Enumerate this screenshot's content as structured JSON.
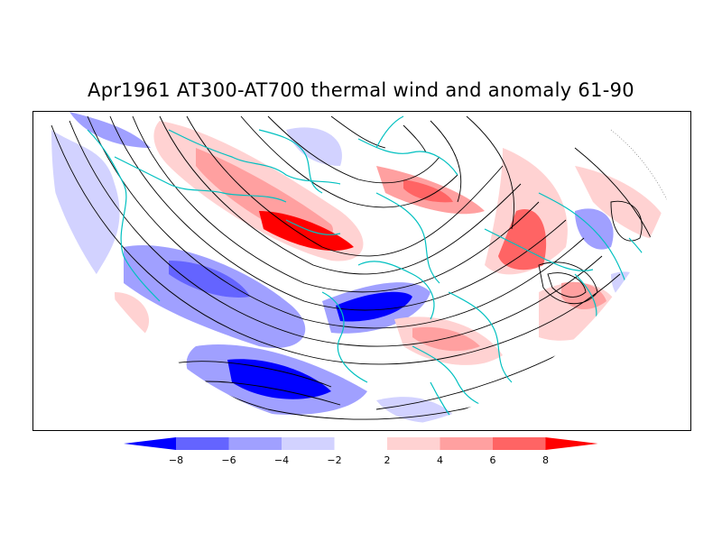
{
  "title": "Apr1961 AT300-AT700 thermal wind and anomaly 61-90",
  "colorbar": {
    "ticks": [
      "-8",
      "-6",
      "-4",
      "-2",
      "2",
      "4",
      "6",
      "8"
    ],
    "colors": [
      "#0000ff",
      "#6464ff",
      "#a0a0ff",
      "#d2d2ff",
      "#ffffff",
      "#ffd2d2",
      "#ffa0a0",
      "#ff6464",
      "#ff0000"
    ]
  },
  "map_colors": {
    "coast": "#00c0c0",
    "streamline": "#000000",
    "dotted": "#888888"
  }
}
